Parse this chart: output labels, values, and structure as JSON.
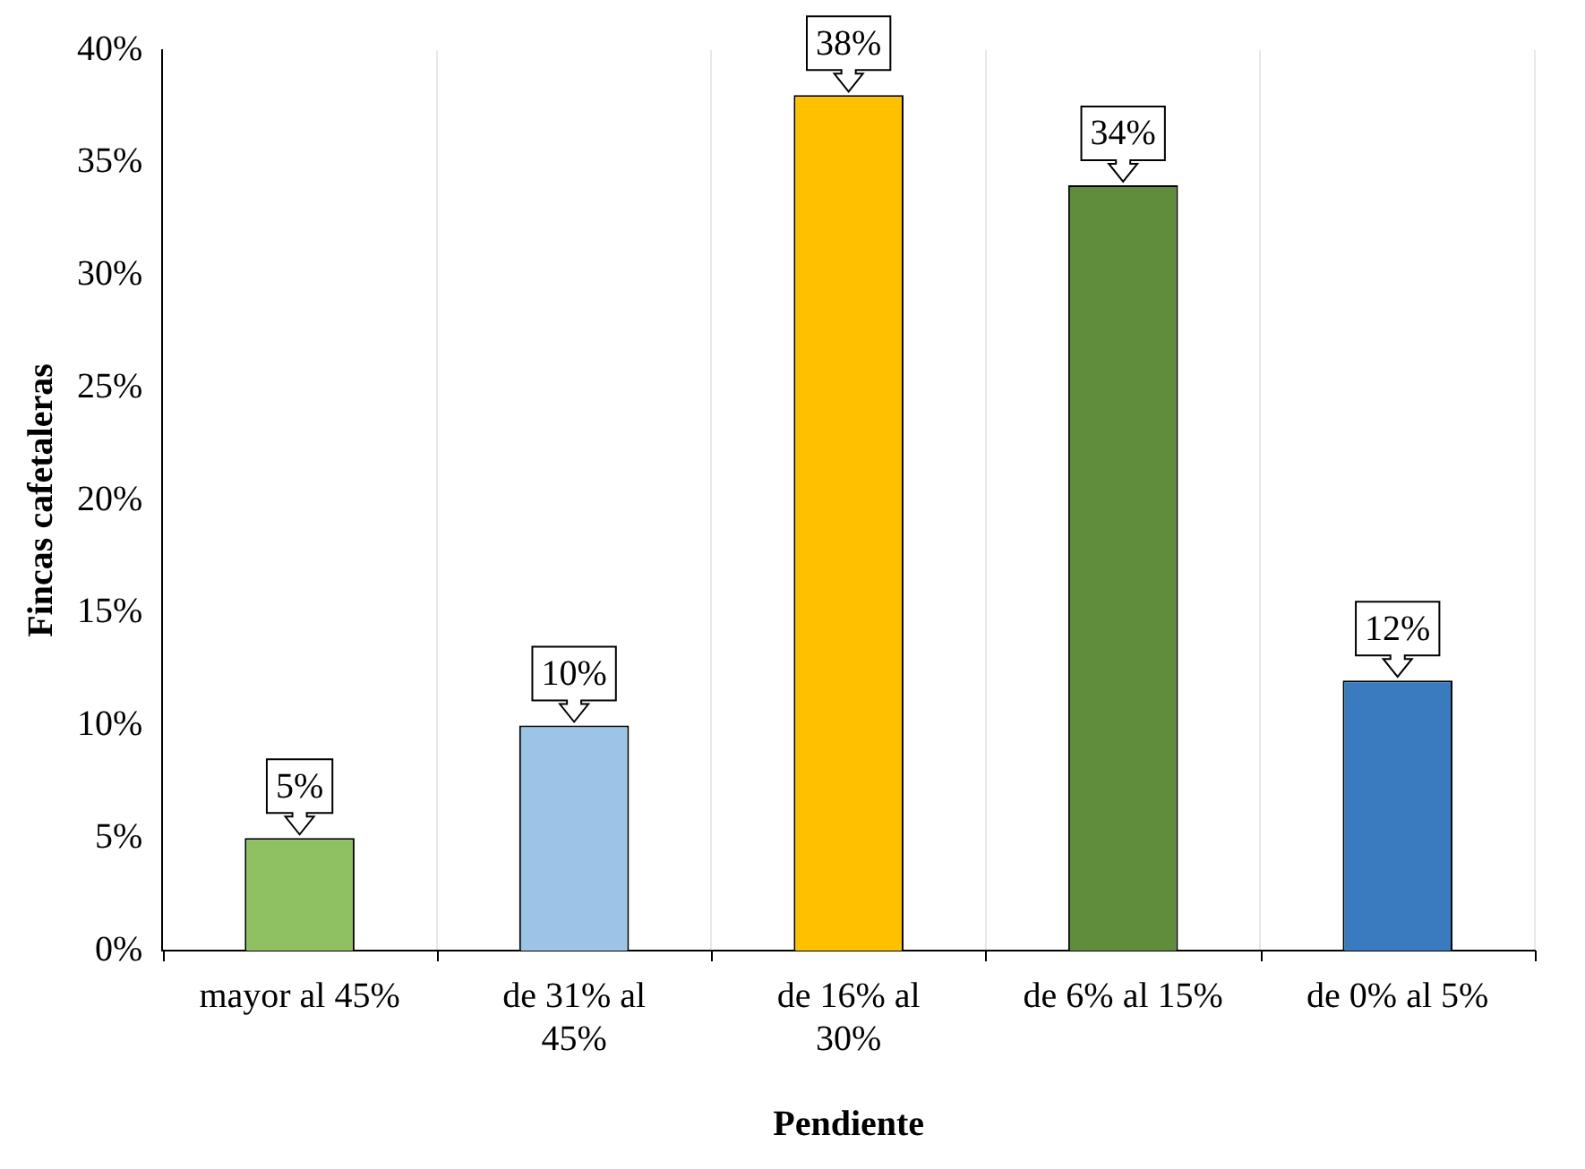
{
  "chart_data": {
    "type": "bar",
    "xlabel": "Pendiente",
    "ylabel": "Fincas cafetaleras",
    "categories": [
      "mayor al 45%",
      "de 31% al 45%",
      "de 16% al 30%",
      "de 6% al 15%",
      "de 0% al 5%"
    ],
    "values": [
      5,
      10,
      38,
      34,
      12
    ],
    "colors": [
      "#8fc062",
      "#9dc3e6",
      "#ffc000",
      "#5f8d3c",
      "#3a7bbf"
    ],
    "ylim": [
      0,
      40
    ],
    "yticks": [
      {
        "value": 0,
        "label": "0%"
      },
      {
        "value": 5,
        "label": "5%"
      },
      {
        "value": 10,
        "label": "10%"
      },
      {
        "value": 15,
        "label": "15%"
      },
      {
        "value": 20,
        "label": "20%"
      },
      {
        "value": 25,
        "label": "25%"
      },
      {
        "value": 30,
        "label": "30%"
      },
      {
        "value": 35,
        "label": "35%"
      },
      {
        "value": 40,
        "label": "40%"
      }
    ],
    "value_labels": [
      "5%",
      "10%",
      "38%",
      "34%",
      "12%"
    ],
    "grid": "x",
    "legend": false
  }
}
